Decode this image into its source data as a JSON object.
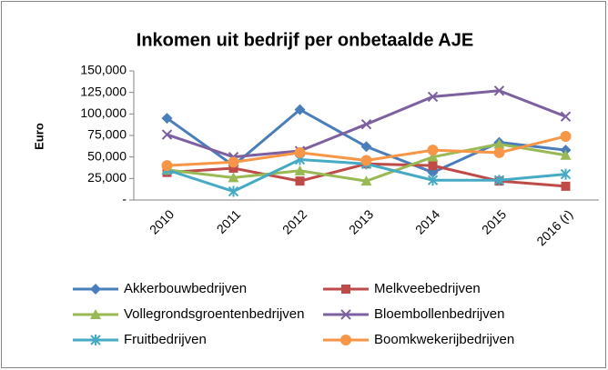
{
  "chart_data": {
    "type": "line",
    "title": "Inkomen uit bedrijf per onbetaalde AJE",
    "y_label": "Euro",
    "categories": [
      "2010",
      "2011",
      "2012",
      "2013",
      "2014",
      "2015",
      "2016 (r)"
    ],
    "ylim": [
      0,
      150000
    ],
    "yticks": [
      {
        "value": 0,
        "label": "-"
      },
      {
        "value": 25000,
        "label": "25,000"
      },
      {
        "value": 50000,
        "label": "50,000"
      },
      {
        "value": 75000,
        "label": "75,000"
      },
      {
        "value": 100000,
        "label": "100,000"
      },
      {
        "value": 125000,
        "label": "125,000"
      },
      {
        "value": 150000,
        "label": "150,000"
      }
    ],
    "grid": false,
    "series": [
      {
        "name": "Akkerbouwbedrijven",
        "color": "#4a7ebb",
        "values": [
          95000,
          40000,
          105000,
          62000,
          32000,
          67000,
          58000
        ]
      },
      {
        "name": "Melkveebedrijven",
        "color": "#be4b48",
        "values": [
          32000,
          37000,
          22000,
          42000,
          40000,
          22000,
          16000
        ]
      },
      {
        "name": "Vollegrondsgroentenbedrijven",
        "color": "#98b954",
        "values": [
          35000,
          26000,
          34000,
          22000,
          50000,
          65000,
          52000
        ]
      },
      {
        "name": "Bloembollenbedrijven",
        "color": "#7d60a0",
        "values": [
          76000,
          50000,
          57000,
          88000,
          120000,
          127000,
          97000
        ]
      },
      {
        "name": "Fruitbedrijven",
        "color": "#46aac5",
        "values": [
          35000,
          10000,
          47000,
          42000,
          23000,
          23000,
          30000
        ]
      },
      {
        "name": "Boomkwekerijbedrijven",
        "color": "#f79646",
        "values": [
          40000,
          44000,
          55000,
          46000,
          58000,
          55000,
          74000
        ]
      }
    ]
  }
}
